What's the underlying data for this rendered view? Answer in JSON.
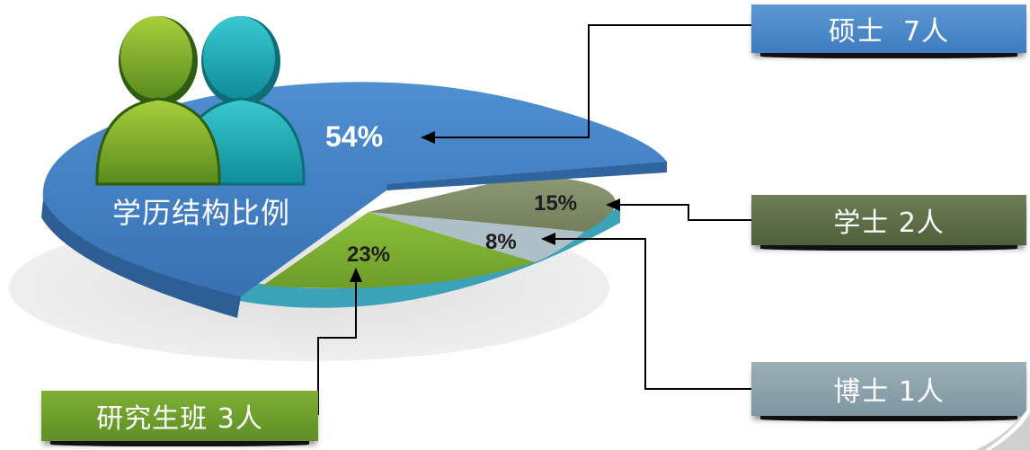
{
  "title": "学历结构比例",
  "chart_data": {
    "type": "pie",
    "title": "学历结构比例",
    "slices": [
      {
        "label": "硕士",
        "count": 7,
        "unit": "人",
        "percent": 54,
        "color": "#3f7ec4"
      },
      {
        "label": "研究生班",
        "count": 3,
        "unit": "人",
        "percent": 23,
        "color": "#78a62e"
      },
      {
        "label": "博士",
        "count": 1,
        "unit": "人",
        "percent": 8,
        "color": "#a9bfcb"
      },
      {
        "label": "学士",
        "count": 2,
        "unit": "人",
        "percent": 15,
        "color": "#7c8a68"
      }
    ]
  },
  "labels": {
    "master": "硕士  7人",
    "bachelor": "学士 2人",
    "doctor": "博士 1人",
    "class": "研究生班 3人"
  },
  "percents": {
    "master": "54%",
    "bachelor": "15%",
    "doctor": "8%",
    "class": "23%"
  },
  "icon": "people-group-icon"
}
